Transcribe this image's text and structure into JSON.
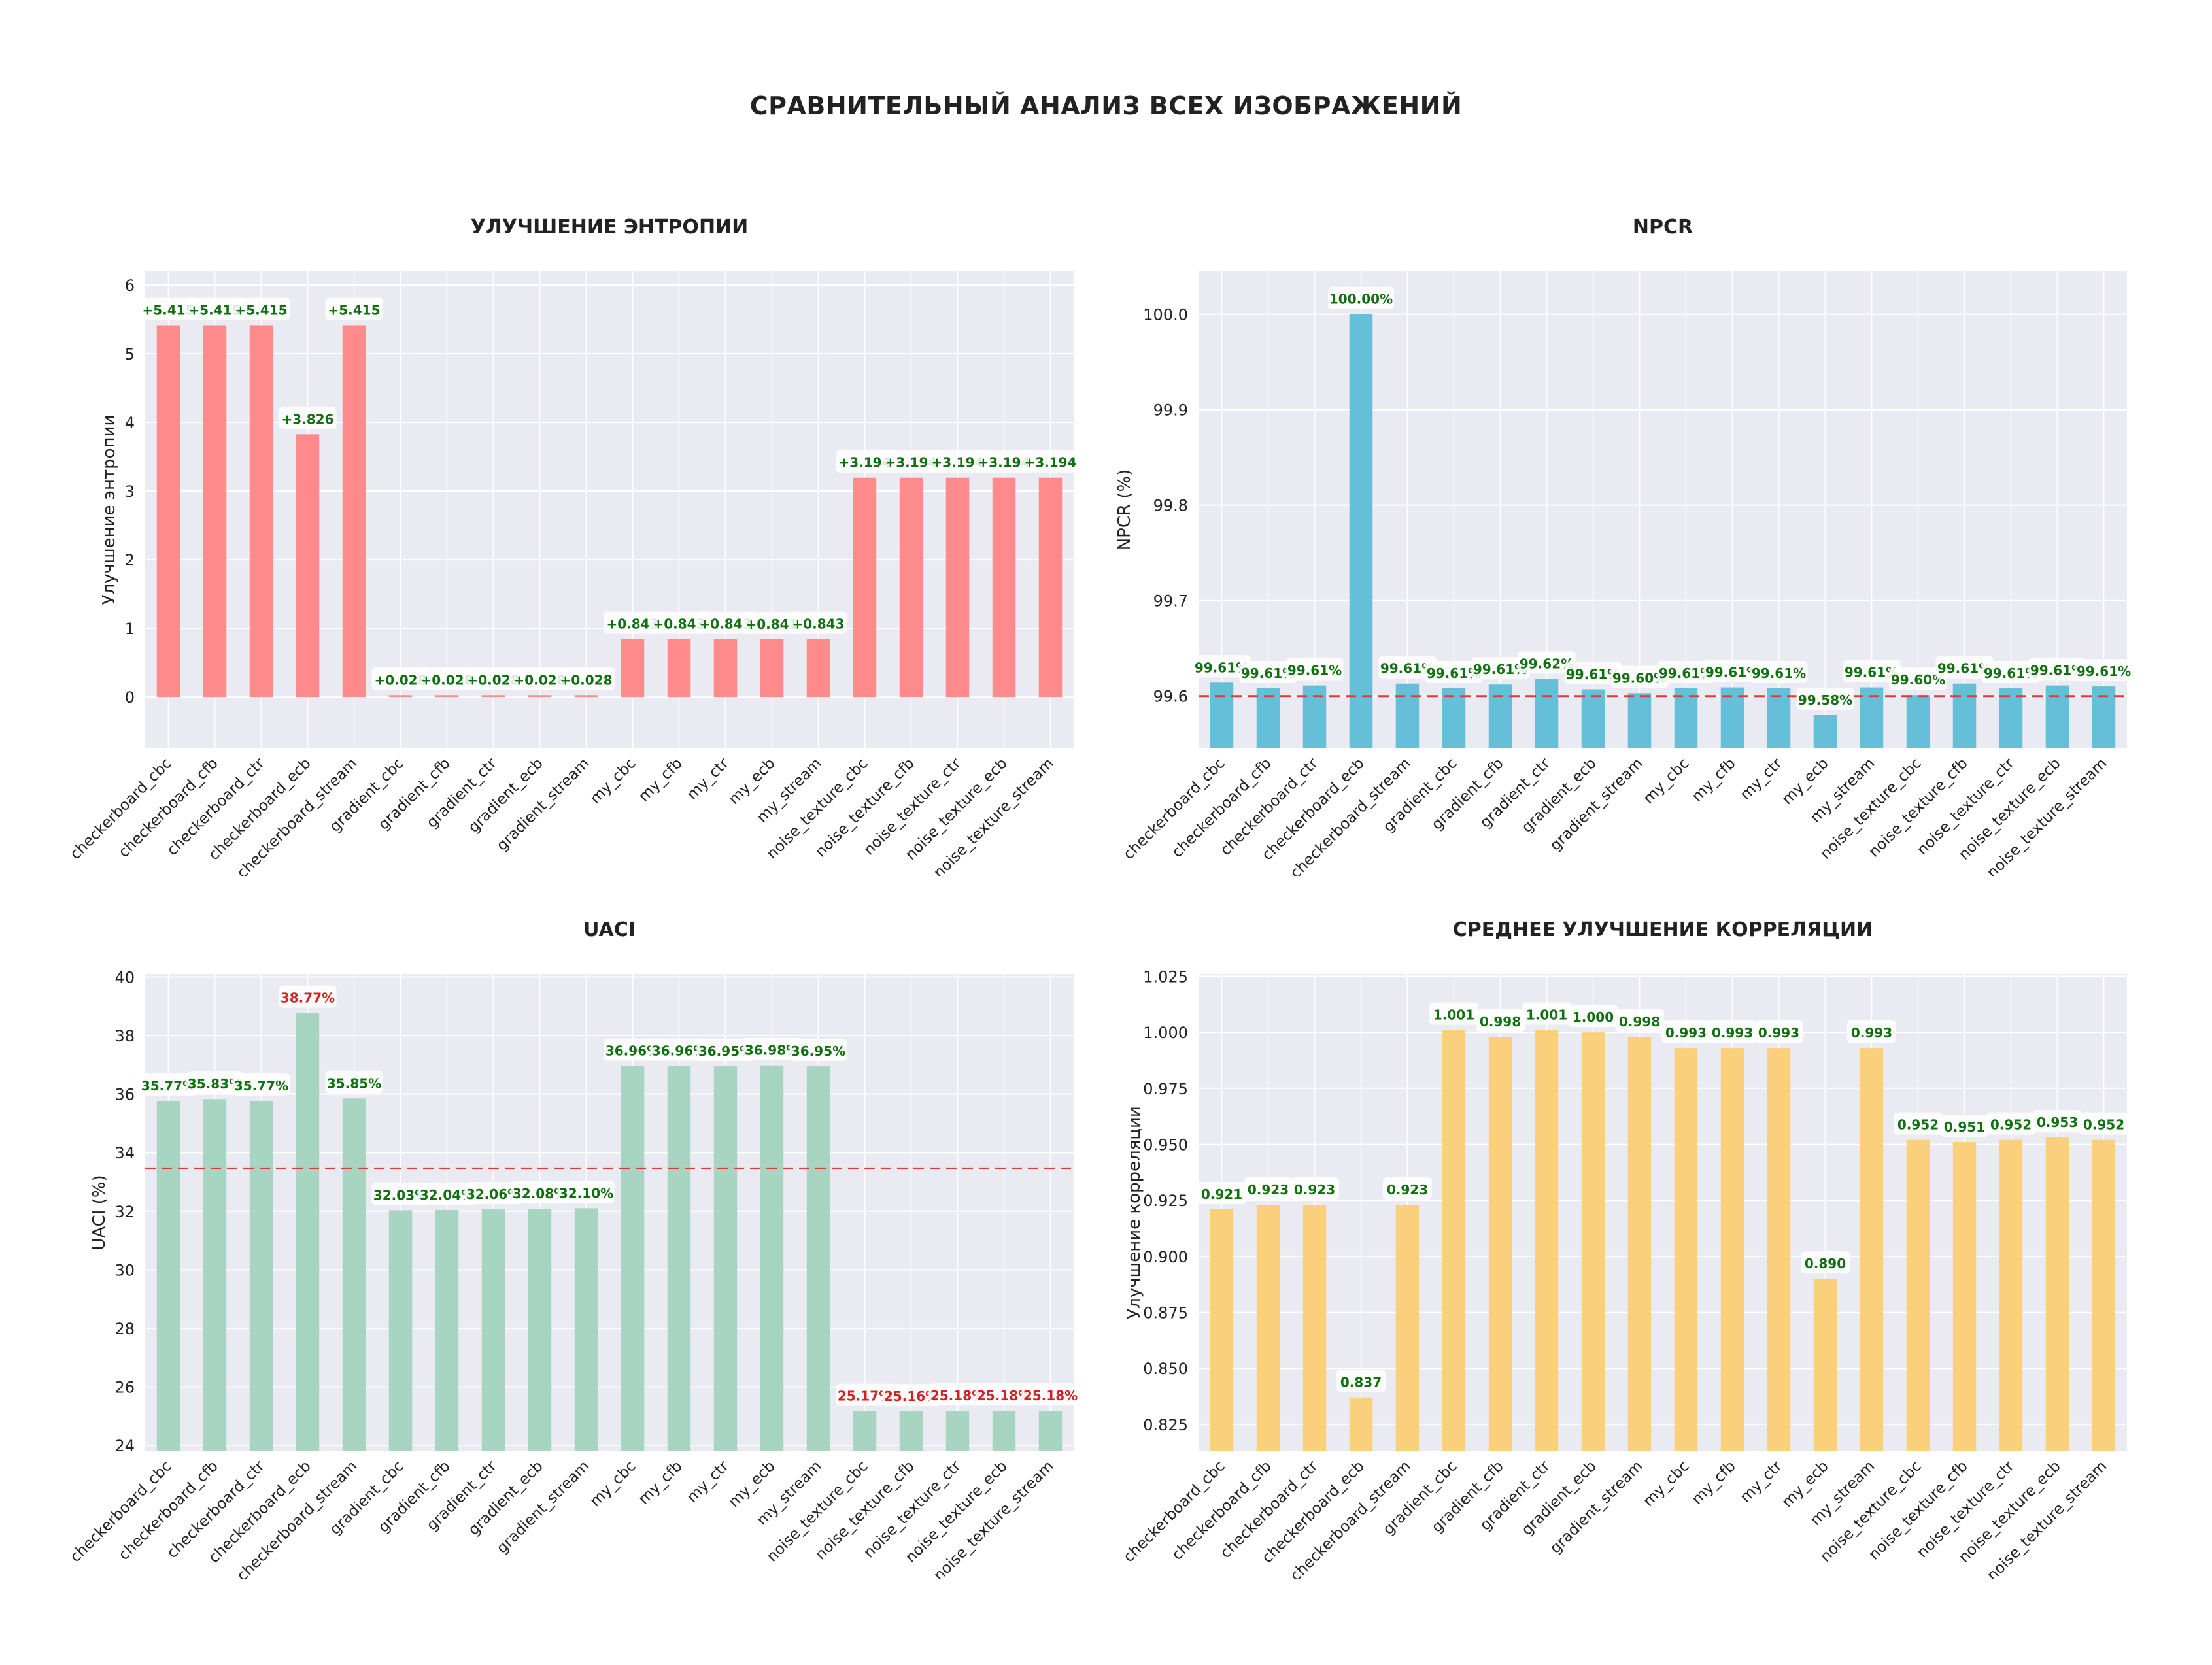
{
  "figure": {
    "suptitle": "СРАВНИТЕЛЬНЫЙ АНАЛИЗ ВСЕХ ИЗОБРАЖЕНИЙ",
    "colors": {
      "plot_bg": "#eaeaf2",
      "grid": "#ffffff",
      "text": "#222222"
    }
  },
  "chart_data": [
    {
      "type": "bar",
      "title": "УЛУЧШЕНИЕ ЭНТРОПИИ",
      "ylabel": "Улучшение энтропии",
      "xlabel": "",
      "ylim": [
        -0.75,
        6.2
      ],
      "yticks": [
        0,
        1,
        2,
        3,
        4,
        5,
        6
      ],
      "color": "#ff8a8c",
      "categories": [
        "checkerboard_cbc",
        "checkerboard_cfb",
        "checkerboard_ctr",
        "checkerboard_ecb",
        "checkerboard_stream",
        "gradient_cbc",
        "gradient_cfb",
        "gradient_ctr",
        "gradient_ecb",
        "gradient_stream",
        "my_cbc",
        "my_cfb",
        "my_ctr",
        "my_ecb",
        "my_stream",
        "noise_texture_cbc",
        "noise_texture_cfb",
        "noise_texture_ctr",
        "noise_texture_ecb",
        "noise_texture_stream"
      ],
      "values": [
        5.415,
        5.415,
        5.415,
        3.826,
        5.415,
        0.028,
        0.028,
        0.028,
        0.028,
        0.028,
        0.843,
        0.843,
        0.843,
        0.841,
        0.843,
        3.194,
        3.194,
        3.194,
        3.194,
        3.194
      ],
      "labels": [
        "+5.415",
        "+5.415",
        "+5.415",
        "+3.826",
        "+5.415",
        "+0.028",
        "+0.028",
        "+0.028",
        "+0.028",
        "+0.028",
        "+0.843",
        "+0.843",
        "+0.843",
        "+0.841",
        "+0.843",
        "+3.194",
        "+3.194",
        "+3.194",
        "+3.194",
        "+3.194"
      ],
      "label_colors": [
        "#107010"
      ],
      "grid": true
    },
    {
      "type": "bar",
      "title": "NPCR",
      "ylabel": "NPCR (%)",
      "xlabel": "",
      "ylim": [
        99.545,
        100.045
      ],
      "yticks": [
        99.6,
        99.7,
        99.8,
        99.9,
        100.0
      ],
      "ytick_labels": [
        "99.6",
        "99.7",
        "99.8",
        "99.9",
        "100.0"
      ],
      "color": "#66bfd8",
      "reference_line": 99.6,
      "reference_color": "#e53935",
      "categories": [
        "checkerboard_cbc",
        "checkerboard_cfb",
        "checkerboard_ctr",
        "checkerboard_ecb",
        "checkerboard_stream",
        "gradient_cbc",
        "gradient_cfb",
        "gradient_ctr",
        "gradient_ecb",
        "gradient_stream",
        "my_cbc",
        "my_cfb",
        "my_ctr",
        "my_ecb",
        "my_stream",
        "noise_texture_cbc",
        "noise_texture_cfb",
        "noise_texture_ctr",
        "noise_texture_ecb",
        "noise_texture_stream"
      ],
      "values": [
        99.614,
        99.608,
        99.611,
        100.0,
        99.613,
        99.608,
        99.612,
        99.618,
        99.607,
        99.603,
        99.608,
        99.609,
        99.608,
        99.58,
        99.609,
        99.601,
        99.613,
        99.608,
        99.611,
        99.61
      ],
      "labels": [
        "99.61%",
        "99.61%",
        "99.61%",
        "100.00%",
        "99.61%",
        "99.61%",
        "99.61%",
        "99.62%",
        "99.61%",
        "99.60%",
        "99.61%",
        "99.61%",
        "99.61%",
        "99.58%",
        "99.61%",
        "99.60%",
        "99.61%",
        "99.61%",
        "99.61%",
        "99.61%"
      ],
      "label_colors": [
        "#107010"
      ],
      "grid": true
    },
    {
      "type": "bar",
      "title": "UACI",
      "ylabel": "UACI (%)",
      "xlabel": "",
      "ylim": [
        23.8,
        40.1
      ],
      "yticks": [
        24,
        26,
        28,
        30,
        32,
        34,
        36,
        38,
        40
      ],
      "color": "#a8d5c2",
      "reference_line": 33.46,
      "reference_color": "#e53935",
      "categories": [
        "checkerboard_cbc",
        "checkerboard_cfb",
        "checkerboard_ctr",
        "checkerboard_ecb",
        "checkerboard_stream",
        "gradient_cbc",
        "gradient_cfb",
        "gradient_ctr",
        "gradient_ecb",
        "gradient_stream",
        "my_cbc",
        "my_cfb",
        "my_ctr",
        "my_ecb",
        "my_stream",
        "noise_texture_cbc",
        "noise_texture_cfb",
        "noise_texture_ctr",
        "noise_texture_ecb",
        "noise_texture_stream"
      ],
      "values": [
        35.77,
        35.83,
        35.77,
        38.77,
        35.85,
        32.03,
        32.04,
        32.06,
        32.08,
        32.1,
        36.96,
        36.96,
        36.95,
        36.98,
        36.95,
        25.17,
        25.16,
        25.18,
        25.18,
        25.18
      ],
      "labels": [
        "35.77%",
        "35.83%",
        "35.77%",
        "38.77%",
        "35.85%",
        "32.03%",
        "32.04%",
        "32.06%",
        "32.08%",
        "32.10%",
        "36.96%",
        "36.96%",
        "36.95%",
        "36.98%",
        "36.95%",
        "25.17%",
        "25.16%",
        "25.18%",
        "25.18%",
        "25.18%"
      ],
      "label_colors": [
        "#107010",
        "#107010",
        "#107010",
        "#d42020",
        "#107010",
        "#107010",
        "#107010",
        "#107010",
        "#107010",
        "#107010",
        "#107010",
        "#107010",
        "#107010",
        "#107010",
        "#107010",
        "#d42020",
        "#d42020",
        "#d42020",
        "#d42020",
        "#d42020"
      ],
      "grid": true
    },
    {
      "type": "bar",
      "title": "СРЕДНЕЕ УЛУЧШЕНИЕ КОРРЕЛЯЦИИ",
      "ylabel": "Улучшение корреляции",
      "xlabel": "",
      "ylim": [
        0.813,
        1.026
      ],
      "yticks": [
        0.825,
        0.85,
        0.875,
        0.9,
        0.925,
        0.95,
        0.975,
        1.0,
        1.025
      ],
      "ytick_labels": [
        "0.825",
        "0.850",
        "0.875",
        "0.900",
        "0.925",
        "0.950",
        "0.975",
        "1.000",
        "1.025"
      ],
      "color": "#fbd07c",
      "categories": [
        "checkerboard_cbc",
        "checkerboard_cfb",
        "checkerboard_ctr",
        "checkerboard_ecb",
        "checkerboard_stream",
        "gradient_cbc",
        "gradient_cfb",
        "gradient_ctr",
        "gradient_ecb",
        "gradient_stream",
        "my_cbc",
        "my_cfb",
        "my_ctr",
        "my_ecb",
        "my_stream",
        "noise_texture_cbc",
        "noise_texture_cfb",
        "noise_texture_ctr",
        "noise_texture_ecb",
        "noise_texture_stream"
      ],
      "values": [
        0.921,
        0.923,
        0.923,
        0.837,
        0.923,
        1.001,
        0.998,
        1.001,
        1.0,
        0.998,
        0.993,
        0.993,
        0.993,
        0.89,
        0.993,
        0.952,
        0.951,
        0.952,
        0.953,
        0.952
      ],
      "labels": [
        "0.921",
        "0.923",
        "0.923",
        "0.837",
        "0.923",
        "1.001",
        "0.998",
        "1.001",
        "1.000",
        "0.998",
        "0.993",
        "0.993",
        "0.993",
        "0.890",
        "0.993",
        "0.952",
        "0.951",
        "0.952",
        "0.953",
        "0.952"
      ],
      "label_colors": [
        "#107010"
      ],
      "grid": true
    }
  ]
}
